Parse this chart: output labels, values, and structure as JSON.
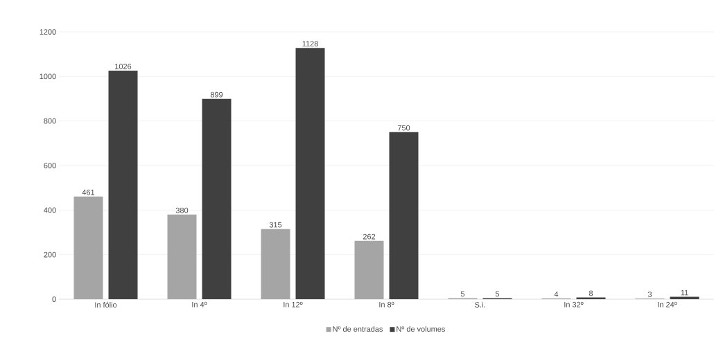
{
  "chart_data": {
    "type": "bar",
    "categories": [
      "In fólio",
      "In 4º",
      "In 12º",
      "In 8º",
      "S.i.",
      "In 32º",
      "In 24º"
    ],
    "series": [
      {
        "name": "Nº de entradas",
        "color": "#a5a5a5",
        "values": [
          461,
          380,
          315,
          262,
          5,
          4,
          3
        ]
      },
      {
        "name": "Nº de volumes",
        "color": "#404040",
        "values": [
          1026,
          899,
          1128,
          750,
          5,
          8,
          11
        ]
      }
    ],
    "ylim": [
      0,
      1200
    ],
    "yticks": [
      0,
      200,
      400,
      600,
      800,
      1000,
      1200
    ],
    "grid": "y",
    "legend": "bottom",
    "data_labels": true
  }
}
